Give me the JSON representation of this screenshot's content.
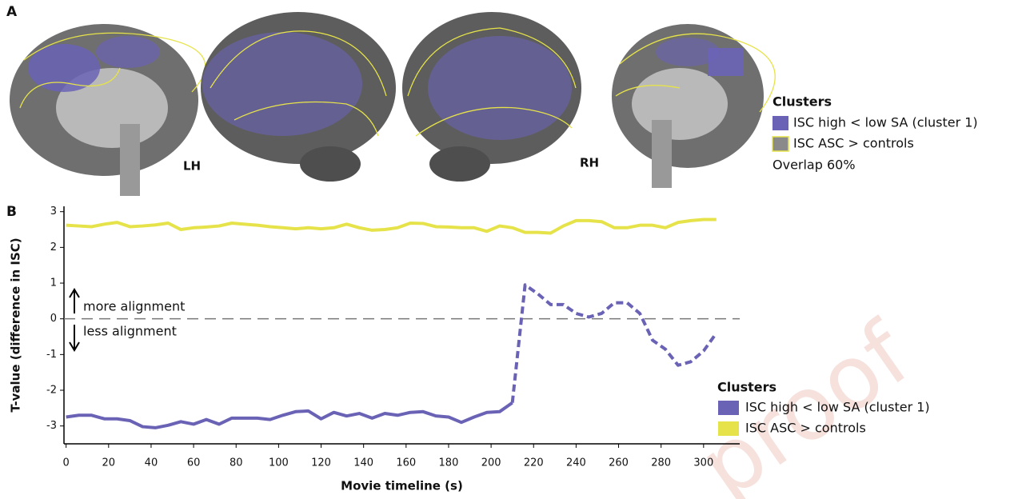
{
  "panel_a": {
    "label": "A",
    "hemispheres": [
      "LH",
      "RH"
    ],
    "legend_title": "Clusters",
    "legend_items": [
      {
        "name": "ISC high < low SA (cluster 1)",
        "color": "#6a63b5"
      },
      {
        "name": "ISC ASC > controls",
        "color": "#8a8a8a",
        "outline": "#e6e34a"
      }
    ],
    "note": "Overlap 60%"
  },
  "watermark": "proof",
  "chart_data": {
    "type": "line",
    "panel_label": "B",
    "x_label": "Movie timeline (s)",
    "y_label": "T-value (difference in ISC)",
    "annotations": [
      "more alignment",
      "less alignment"
    ],
    "legend_title": "Clusters",
    "legend": "lower right",
    "zero_line": true,
    "xlim": [
      -1,
      317
    ],
    "xticks": [
      0,
      20,
      40,
      60,
      80,
      100,
      120,
      140,
      160,
      180,
      200,
      220,
      240,
      260,
      280,
      300
    ],
    "ylim": [
      -3.5,
      3.15
    ],
    "yticks": [
      -3,
      -2,
      -1,
      0,
      1,
      2,
      3
    ],
    "x": [
      0,
      6,
      12,
      18,
      24,
      30,
      36,
      42,
      48,
      54,
      60,
      66,
      72,
      78,
      84,
      90,
      96,
      102,
      108,
      114,
      120,
      126,
      132,
      138,
      144,
      150,
      156,
      162,
      168,
      174,
      180,
      186,
      192,
      198,
      204,
      210,
      216,
      222,
      228,
      234,
      240,
      246,
      252,
      258,
      264,
      270,
      276,
      282,
      288,
      294,
      300,
      306
    ],
    "series": [
      {
        "name": "ISC high < low SA (cluster 1)",
        "color": "#6a63b5",
        "dashed_from_x": 210,
        "values": [
          -2.75,
          -2.7,
          -2.7,
          -2.8,
          -2.8,
          -2.85,
          -3.02,
          -3.05,
          -2.98,
          -2.88,
          -2.95,
          -2.82,
          -2.95,
          -2.78,
          -2.78,
          -2.78,
          -2.82,
          -2.7,
          -2.6,
          -2.58,
          -2.8,
          -2.62,
          -2.72,
          -2.65,
          -2.78,
          -2.65,
          -2.7,
          -2.62,
          -2.6,
          -2.72,
          -2.75,
          -2.9,
          -2.75,
          -2.62,
          -2.6,
          -2.35,
          0.95,
          0.7,
          0.4,
          0.4,
          0.15,
          0.05,
          0.15,
          0.45,
          0.45,
          0.15,
          -0.6,
          -0.85,
          -1.3,
          -1.2,
          -0.9,
          -0.4
        ]
      },
      {
        "name": "ISC ASC > controls",
        "color": "#e6e34a",
        "values": [
          2.62,
          2.6,
          2.58,
          2.65,
          2.7,
          2.58,
          2.6,
          2.63,
          2.68,
          2.5,
          2.55,
          2.57,
          2.6,
          2.68,
          2.65,
          2.62,
          2.58,
          2.55,
          2.52,
          2.55,
          2.52,
          2.55,
          2.65,
          2.55,
          2.48,
          2.5,
          2.55,
          2.68,
          2.67,
          2.58,
          2.57,
          2.55,
          2.55,
          2.45,
          2.6,
          2.55,
          2.42,
          2.42,
          2.4,
          2.6,
          2.75,
          2.75,
          2.72,
          2.55,
          2.55,
          2.62,
          2.62,
          2.55,
          2.7,
          2.75,
          2.78,
          2.78
        ]
      }
    ]
  }
}
